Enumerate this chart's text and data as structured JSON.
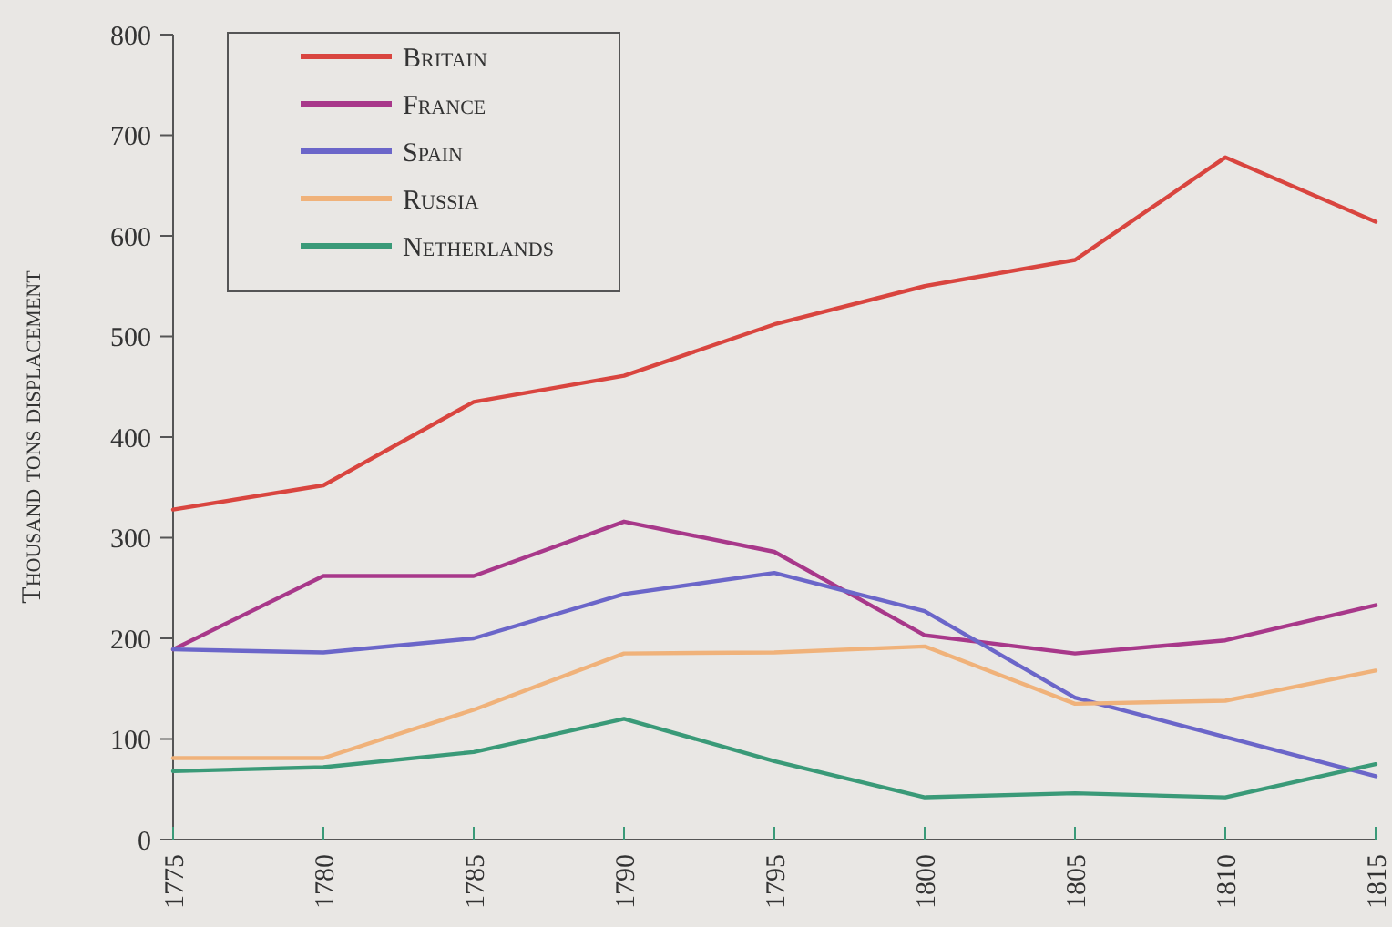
{
  "chart_data": {
    "type": "line",
    "ylabel": "Thousand tons displacement",
    "x": [
      1775,
      1780,
      1785,
      1790,
      1795,
      1800,
      1805,
      1810,
      1815
    ],
    "xlim": [
      1775,
      1815
    ],
    "xticks": [
      1775,
      1780,
      1785,
      1790,
      1795,
      1800,
      1805,
      1810,
      1815
    ],
    "ylim": [
      0,
      800
    ],
    "yticks": [
      0,
      100,
      200,
      300,
      400,
      500,
      600,
      700,
      800
    ],
    "grid": false,
    "legend": "top left",
    "marker": "none",
    "line_style": "solid",
    "series": [
      {
        "name": "Britain",
        "color": "#d9453f",
        "values": [
          328,
          352,
          435,
          461,
          512,
          550,
          576,
          678,
          614
        ]
      },
      {
        "name": "France",
        "color": "#a8388a",
        "values": [
          189,
          262,
          262,
          316,
          286,
          203,
          185,
          198,
          233
        ]
      },
      {
        "name": "Spain",
        "color": "#6b66c9",
        "values": [
          189,
          186,
          200,
          244,
          265,
          227,
          141,
          102,
          63
        ]
      },
      {
        "name": "Russia",
        "color": "#f0b27a",
        "values": [
          81,
          81,
          129,
          185,
          186,
          192,
          135,
          138,
          168
        ]
      },
      {
        "name": "Netherlands",
        "color": "#3a9a78",
        "values": [
          68,
          72,
          87,
          120,
          78,
          42,
          46,
          42,
          75
        ]
      }
    ]
  }
}
